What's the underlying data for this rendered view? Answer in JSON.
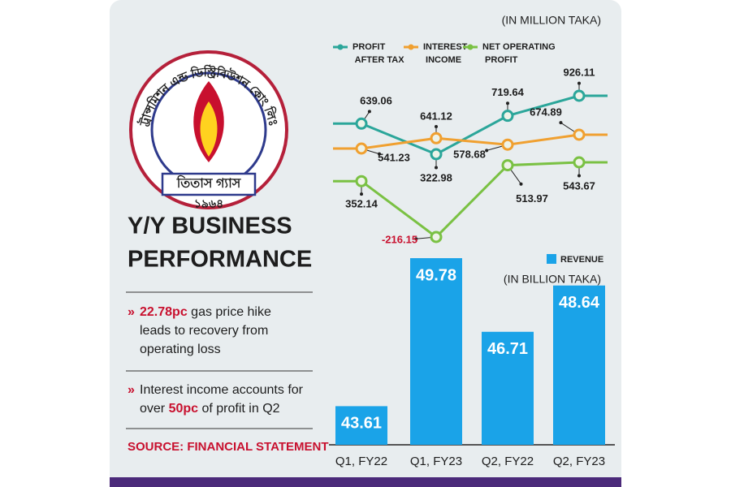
{
  "title_lines": [
    "Y/Y BUSINESS",
    "PERFORMANCE"
  ],
  "logo": {
    "arc_text": "ট্রান্সমিশন এন্ড ডিস্ট্রিবিউশন কোং লিঃ",
    "name": "তিতাস গ্যাস",
    "year": "১৯৬৪"
  },
  "notes": [
    {
      "lines": [
        [
          {
            "text": "22.78pc",
            "highlight": true
          },
          {
            "text": " gas price hike",
            "highlight": false
          }
        ],
        [
          {
            "text": "leads to recovery from",
            "highlight": false
          }
        ],
        [
          {
            "text": "operating loss",
            "highlight": false
          }
        ]
      ]
    },
    {
      "lines": [
        [
          {
            "text": "Interest income accounts for",
            "highlight": false
          }
        ],
        [
          {
            "text": "over ",
            "highlight": false
          },
          {
            "text": "50pc",
            "highlight": true
          },
          {
            "text": " of profit in Q2",
            "highlight": false
          }
        ]
      ]
    }
  ],
  "source": "SOURCE: FINANCIAL STATEMENT",
  "chart_data": [
    {
      "type": "line",
      "unit_label": "(IN MILLION TAKA)",
      "series": [
        {
          "name": "PROFIT AFTER TAX",
          "color": "#2ba69a",
          "values": [
            639.06,
            322.98,
            719.64,
            926.11
          ]
        },
        {
          "name": "INTEREST INCOME",
          "color": "#f0a030",
          "values": [
            541.23,
            641.12,
            578.68,
            674.89
          ]
        },
        {
          "name": "NET OPERATING PROFIT",
          "color": "#7ac143",
          "values": [
            352.14,
            -216.15,
            513.97,
            543.67
          ]
        }
      ]
    },
    {
      "type": "bar",
      "unit_label": "(IN BILLION TAKA)",
      "categories": [
        "Q1, FY22",
        "Q1, FY23",
        "Q2, FY22",
        "Q2, FY23"
      ],
      "series": [
        {
          "name": "REVENUE",
          "color": "#1aa3e8",
          "values": [
            43.61,
            49.78,
            46.71,
            48.64
          ]
        }
      ],
      "ylim": [
        42,
        51
      ]
    }
  ]
}
